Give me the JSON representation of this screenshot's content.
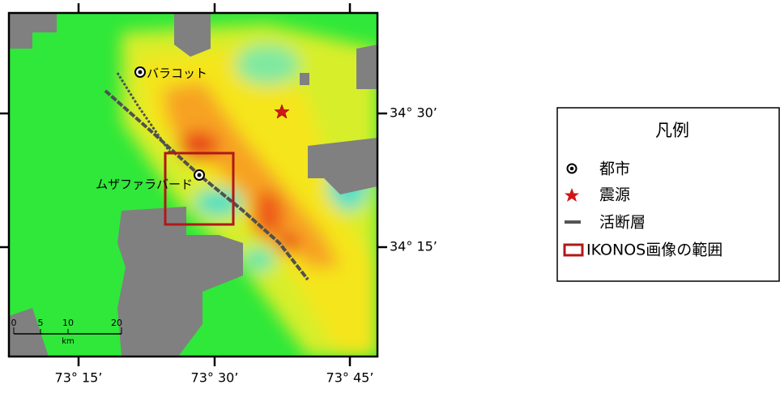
{
  "map": {
    "cities": [
      {
        "label": "バラコット"
      },
      {
        "label": "ムザファラバード"
      }
    ],
    "longitude_labels": [
      "73° 15’",
      "73° 30’",
      "73° 45’"
    ],
    "latitude_labels": [
      "34° 30’",
      "34° 15’"
    ],
    "scale_bar": {
      "ticks": [
        "0",
        "5",
        "10",
        "20"
      ],
      "unit": "km"
    }
  },
  "legend": {
    "title": "凡例",
    "items": [
      "都市",
      "震源",
      "活断層",
      "IKONOS画像の範囲"
    ]
  }
}
